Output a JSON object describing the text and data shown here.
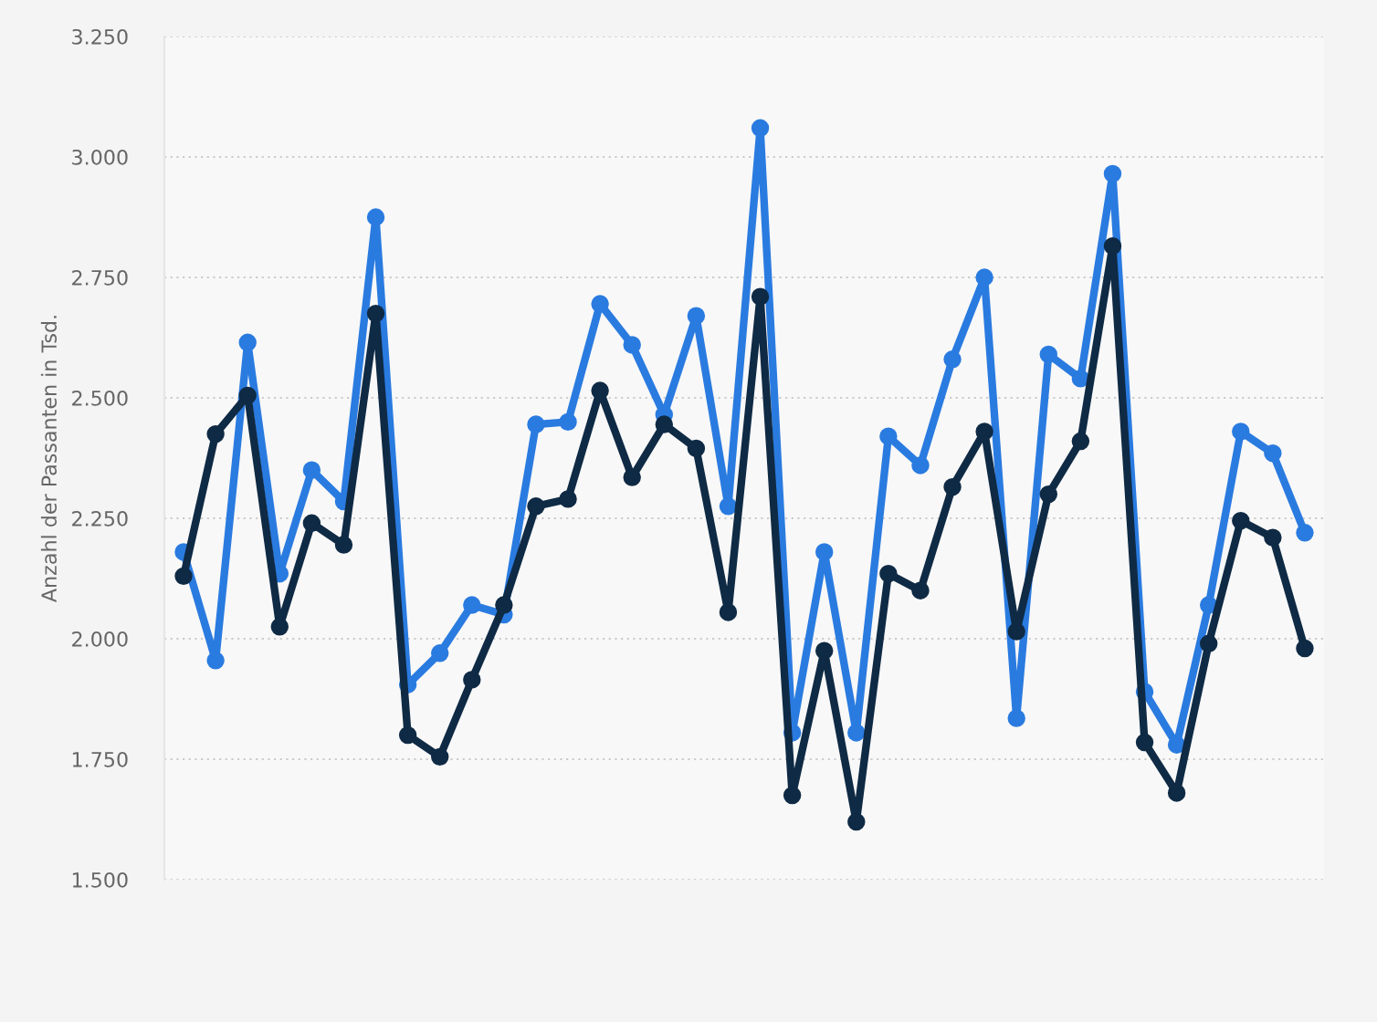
{
  "chart_data": {
    "type": "line",
    "ylabel": "Anzahl der Passanten in Tsd.",
    "categories": [
      null,
      null,
      null,
      null,
      null,
      null,
      null,
      null,
      null,
      null,
      null,
      null,
      null,
      null,
      null,
      null,
      null,
      null,
      null,
      null,
      null,
      null,
      null,
      null,
      null,
      null,
      null,
      null,
      null,
      null,
      null,
      null,
      null,
      null,
      null,
      null
    ],
    "series": [
      {
        "color": "#2a7be0",
        "values": [
          2180,
          1955,
          2615,
          2135,
          2350,
          2285,
          2875,
          1905,
          1970,
          2070,
          2050,
          2445,
          2450,
          2695,
          2610,
          2465,
          2670,
          2275,
          3060,
          1805,
          2180,
          1805,
          2420,
          2360,
          2580,
          2750,
          1835,
          2590,
          2540,
          2965,
          1890,
          1780,
          2070,
          2430,
          2385,
          2220
        ]
      },
      {
        "color": "#0f2a44",
        "values": [
          2130,
          2425,
          2505,
          2025,
          2240,
          2195,
          2675,
          1800,
          1755,
          1915,
          2070,
          2275,
          2290,
          2515,
          2335,
          2445,
          2395,
          2055,
          2710,
          1675,
          1975,
          1620,
          2135,
          2100,
          2315,
          2430,
          2015,
          2300,
          2410,
          2815,
          1785,
          1680,
          1990,
          2245,
          2210,
          1980
        ]
      }
    ],
    "ylim": [
      1500,
      3250
    ],
    "yticks": [
      {
        "value": 1500,
        "label": "1.500"
      },
      {
        "value": 1750,
        "label": "1.750"
      },
      {
        "value": 2000,
        "label": "2.000"
      },
      {
        "value": 2250,
        "label": "2.250"
      },
      {
        "value": 2500,
        "label": "2.500"
      },
      {
        "value": 2750,
        "label": "2.750"
      },
      {
        "value": 3000,
        "label": "3.000"
      },
      {
        "value": 3250,
        "label": "3.250"
      }
    ],
    "grid": "y",
    "marker": "circle",
    "line_style": "solid",
    "tick_labels": "y"
  }
}
